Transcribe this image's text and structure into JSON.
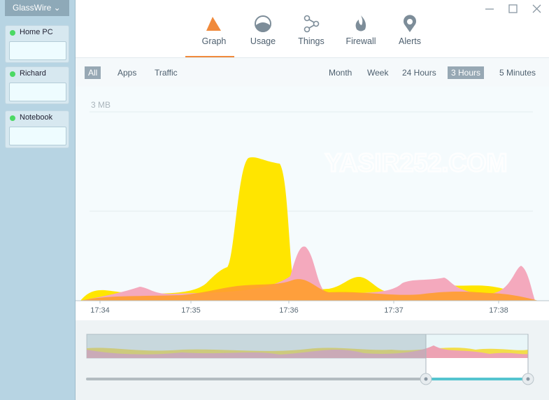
{
  "app": {
    "title": "GlassWire"
  },
  "devices": [
    {
      "name": "Home PC"
    },
    {
      "name": "Richard"
    },
    {
      "name": "Notebook"
    }
  ],
  "tabs": [
    "Graph",
    "Usage",
    "Things",
    "Firewall",
    "Alerts"
  ],
  "filters": [
    "All",
    "Apps",
    "Traffic"
  ],
  "ranges": [
    "Month",
    "Week",
    "24 Hours",
    "3 Hours",
    "5 Minutes"
  ],
  "graph": {
    "scale_label": "3 MB",
    "time_labels": [
      "17:34",
      "17:35",
      "17:36",
      "17:37",
      "17:38"
    ],
    "watermark": "YASIR252.COM"
  }
}
